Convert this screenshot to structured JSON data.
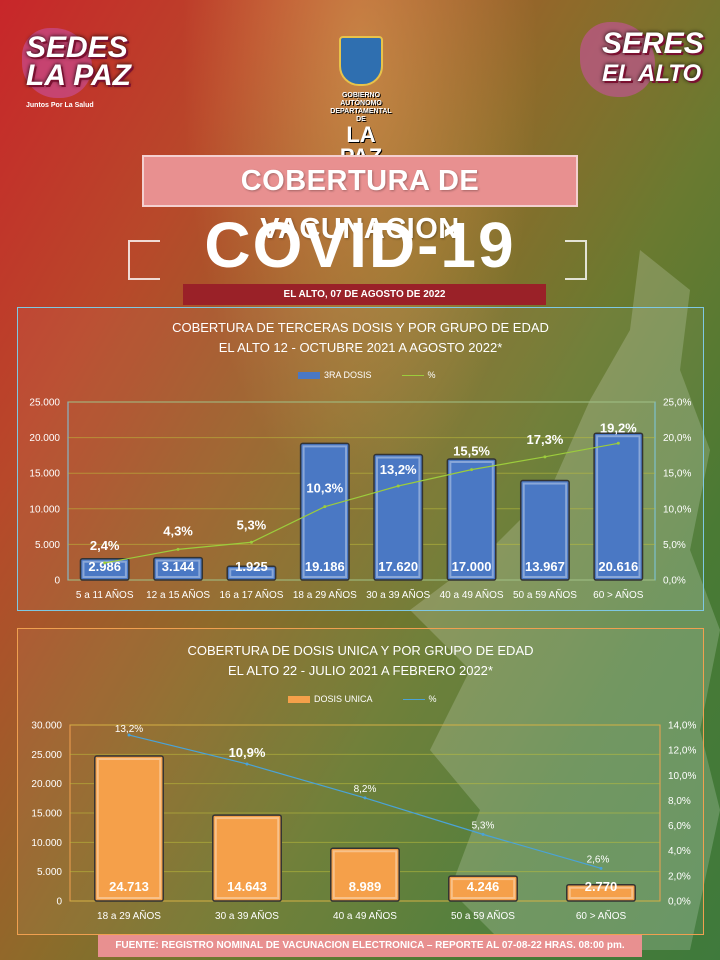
{
  "header": {
    "logo_left_line1": "SEDES",
    "logo_left_line2": "LA PAZ",
    "logo_left_sub": "Juntos Por La Salud",
    "logo_right_line1": "SERES",
    "logo_right_line2": "EL ALTO",
    "emblem_line1": "GOBIERNO AUTÓNOMO",
    "emblem_line2": "DEPARTAMENTAL DE",
    "emblem_line3": "LA PAZ"
  },
  "title": "COBERTURA DE VACUNACION",
  "covid_banner": "COVID-19",
  "date_line": "EL ALTO, 07 DE AGOSTO DE 2022",
  "footer": "FUENTE: REGISTRO NOMINAL DE VACUNACION ELECTRONICA – REPORTE AL 07-08-22 HRAS. 08:00 pm.",
  "colors": {
    "bar_blue": "#4a78c4",
    "bar_orange": "#f5a04a",
    "line_green": "#9ccc3c",
    "line_blue": "#4aa3d8",
    "title_pink": "#e89090",
    "date_red": "#9a2128"
  },
  "chart_data": [
    {
      "type": "bar",
      "title_line1": "COBERTURA DE TERCERAS DOSIS Y POR GRUPO DE EDAD",
      "title_line2": "EL ALTO 12 - OCTUBRE 2021 A AGOSTO 2022*",
      "categories": [
        "5 a 11 AÑOS",
        "12 a 15 AÑOS",
        "16 a 17 AÑOS",
        "18 a 29 AÑOS",
        "30 a 39 AÑOS",
        "40 a 49 AÑOS",
        "50 a 59 AÑOS",
        "60 > AÑOS"
      ],
      "series": [
        {
          "name": "3RA DOSIS",
          "type": "bar",
          "values": [
            2986,
            3144,
            1925,
            19186,
            17620,
            17000,
            13967,
            20616
          ],
          "labels": [
            "2.986",
            "3.144",
            "1.925",
            "19.186",
            "17.620",
            "17.000",
            "13.967",
            "20.616"
          ]
        },
        {
          "name": "%",
          "type": "line",
          "axis": "right",
          "values": [
            2.4,
            4.3,
            5.3,
            10.3,
            13.2,
            15.5,
            17.3,
            19.2
          ],
          "labels": [
            "2,4%",
            "4,3%",
            "5,3%",
            "10,3%",
            "13,2%",
            "15,5%",
            "17,3%",
            "19,2%"
          ]
        }
      ],
      "ylim": [
        0,
        25000
      ],
      "y_ticks": [
        "0",
        "5.000",
        "10.000",
        "15.000",
        "20.000",
        "25.000"
      ],
      "y2lim": [
        0,
        25
      ],
      "y2_ticks": [
        "0,0%",
        "5,0%",
        "10,0%",
        "15,0%",
        "20,0%",
        "25,0%"
      ],
      "grid": true,
      "legend": "top-center"
    },
    {
      "type": "bar",
      "title_line1": "COBERTURA DE DOSIS UNICA Y POR GRUPO DE EDAD",
      "title_line2": "EL ALTO 22 - JULIO 2021 A FEBRERO 2022*",
      "categories": [
        "18 a 29 AÑOS",
        "30 a 39 AÑOS",
        "40 a 49 AÑOS",
        "50 a 59 AÑOS",
        "60 > AÑOS"
      ],
      "series": [
        {
          "name": "DOSIS UNICA",
          "type": "bar",
          "values": [
            24713,
            14643,
            8989,
            4246,
            2770
          ],
          "labels": [
            "24.713",
            "14.643",
            "8.989",
            "4.246",
            "2.770"
          ]
        },
        {
          "name": "%",
          "type": "line",
          "axis": "right",
          "values": [
            13.2,
            10.9,
            8.2,
            5.3,
            2.6
          ],
          "labels": [
            "13,2%",
            "10,9%",
            "8,2%",
            "5,3%",
            "2,6%"
          ]
        }
      ],
      "ylim": [
        0,
        30000
      ],
      "y_ticks": [
        "0",
        "5.000",
        "10.000",
        "15.000",
        "20.000",
        "25.000",
        "30.000"
      ],
      "y2lim": [
        0,
        14
      ],
      "y2_ticks": [
        "0,0%",
        "2,0%",
        "4,0%",
        "6,0%",
        "8,0%",
        "10,0%",
        "12,0%",
        "14,0%"
      ],
      "grid": true,
      "legend": "top-center"
    }
  ]
}
